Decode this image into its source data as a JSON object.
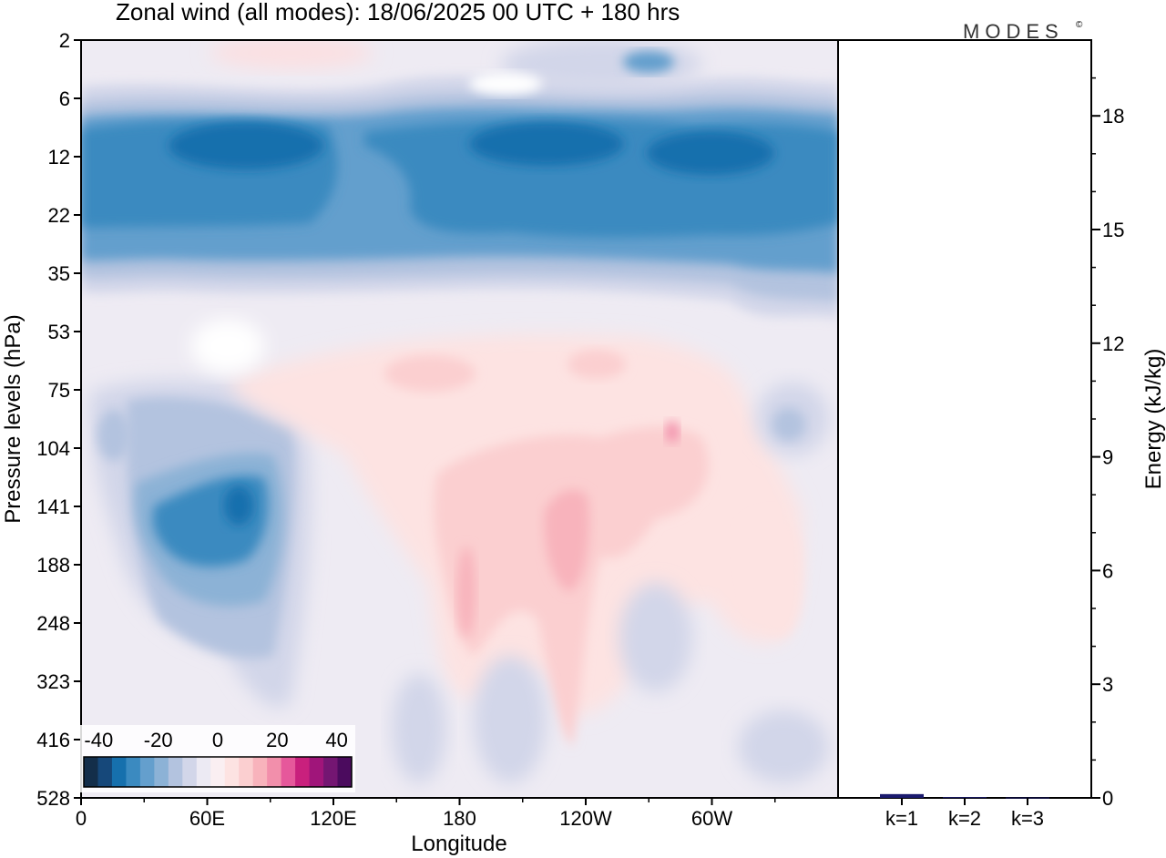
{
  "title": "Zonal wind (all modes):  18/06/2025  00 UTC  + 180 hrs",
  "brand": "MODES",
  "brand_mark": "©",
  "chart_data": [
    {
      "type": "heatmap",
      "title": "Zonal wind (all modes):  18/06/2025  00 UTC  + 180 hrs",
      "xlabel": "Longitude",
      "ylabel": "Pressure levels (hPa)",
      "x_ticks": [
        "0",
        "60E",
        "120E",
        "180",
        "120W",
        "60W"
      ],
      "x_tick_values": [
        0,
        60,
        120,
        180,
        240,
        300
      ],
      "xlim": [
        0,
        360
      ],
      "y_ticks": [
        "2",
        "6",
        "12",
        "22",
        "35",
        "53",
        "75",
        "104",
        "141",
        "188",
        "248",
        "323",
        "416",
        "528"
      ],
      "y_axis": "categorical pressure levels, top = 2 hPa, bottom = 528 hPa",
      "colorbar": {
        "ticks": [
          "-40",
          "-20",
          "0",
          "20",
          "40"
        ],
        "range": [
          -45,
          45
        ],
        "colors": [
          "#132e4a",
          "#16487a",
          "#1670ad",
          "#3b8ac0",
          "#649fcd",
          "#8cb2d6",
          "#b3c3df",
          "#d2d6e9",
          "#eceaf3",
          "#faeff2",
          "#fde3e2",
          "#fbcfd0",
          "#f8b3bc",
          "#f28fab",
          "#e6589b",
          "#c9207d",
          "#a0157a",
          "#741672",
          "#4b0b5e"
        ]
      },
      "regions": [
        {
          "name": "stratospheric easterly jet",
          "lon": [
            0,
            360
          ],
          "level_index": [
            1.2,
            4.4
          ],
          "value": -25,
          "max_value": -38
        },
        {
          "name": "upper westerlies",
          "lon": [
            60,
            160
          ],
          "level_index": [
            0,
            1
          ],
          "value": 5
        },
        {
          "name": "easterly core 60E-90E",
          "lon": [
            30,
            100
          ],
          "level_index": [
            7.4,
            10.8
          ],
          "value": -24,
          "max_value": -35
        },
        {
          "name": "westerly band 180-120W",
          "lon": [
            170,
            250
          ],
          "level_index": [
            7,
            11.8
          ],
          "value": 12
        },
        {
          "name": "westerly band 60W",
          "lon": [
            290,
            340
          ],
          "level_index": [
            7.5,
            10.5
          ],
          "value": 8
        }
      ]
    },
    {
      "type": "bar",
      "categories": [
        "k=1",
        "k=2",
        "k=3"
      ],
      "values": [
        0.1,
        0.02,
        0.01
      ],
      "ylabel": "Energy (kJ/kg)",
      "ylim": [
        0,
        20
      ],
      "y_ticks": [
        "0",
        "3",
        "6",
        "9",
        "12",
        "15",
        "18"
      ],
      "y_tick_values": [
        0,
        3,
        6,
        9,
        12,
        15,
        18
      ],
      "bar_color": "#1a1a6e"
    }
  ]
}
